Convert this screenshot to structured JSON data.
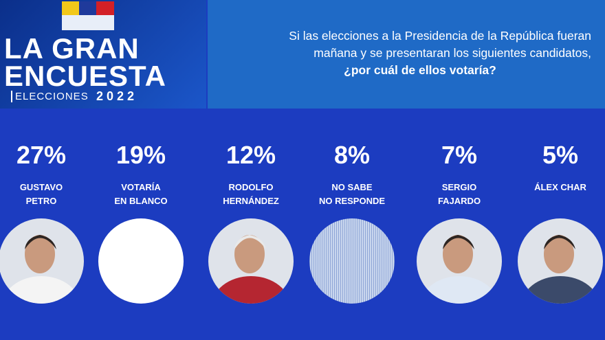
{
  "header": {
    "logo_title_lines": [
      "LA GRAN",
      "ENCUESTA"
    ],
    "logo_subtitle": "ELECCIONES",
    "logo_year": "2022",
    "question_lines": [
      "Si las elecciones a la Presidencia de la República fueran",
      "mañana y se presentaran los siguientes candidatos,",
      "¿por cuál de ellos votaría?"
    ]
  },
  "candidates": [
    {
      "percent": "27%",
      "name_lines": [
        "GUSTAVO",
        "PETRO"
      ]
    },
    {
      "percent": "19%",
      "name_lines": [
        "VOTARÍA",
        "EN BLANCO"
      ]
    },
    {
      "percent": "12%",
      "name_lines": [
        "RODOLFO",
        "HERNÁNDEZ"
      ]
    },
    {
      "percent": "8%",
      "name_lines": [
        "NO SABE",
        "NO RESPONDE"
      ]
    },
    {
      "percent": "7%",
      "name_lines": [
        "SERGIO",
        "FAJARDO"
      ]
    },
    {
      "percent": "5%",
      "name_lines": [
        "ÁLEX CHAR"
      ]
    }
  ]
}
